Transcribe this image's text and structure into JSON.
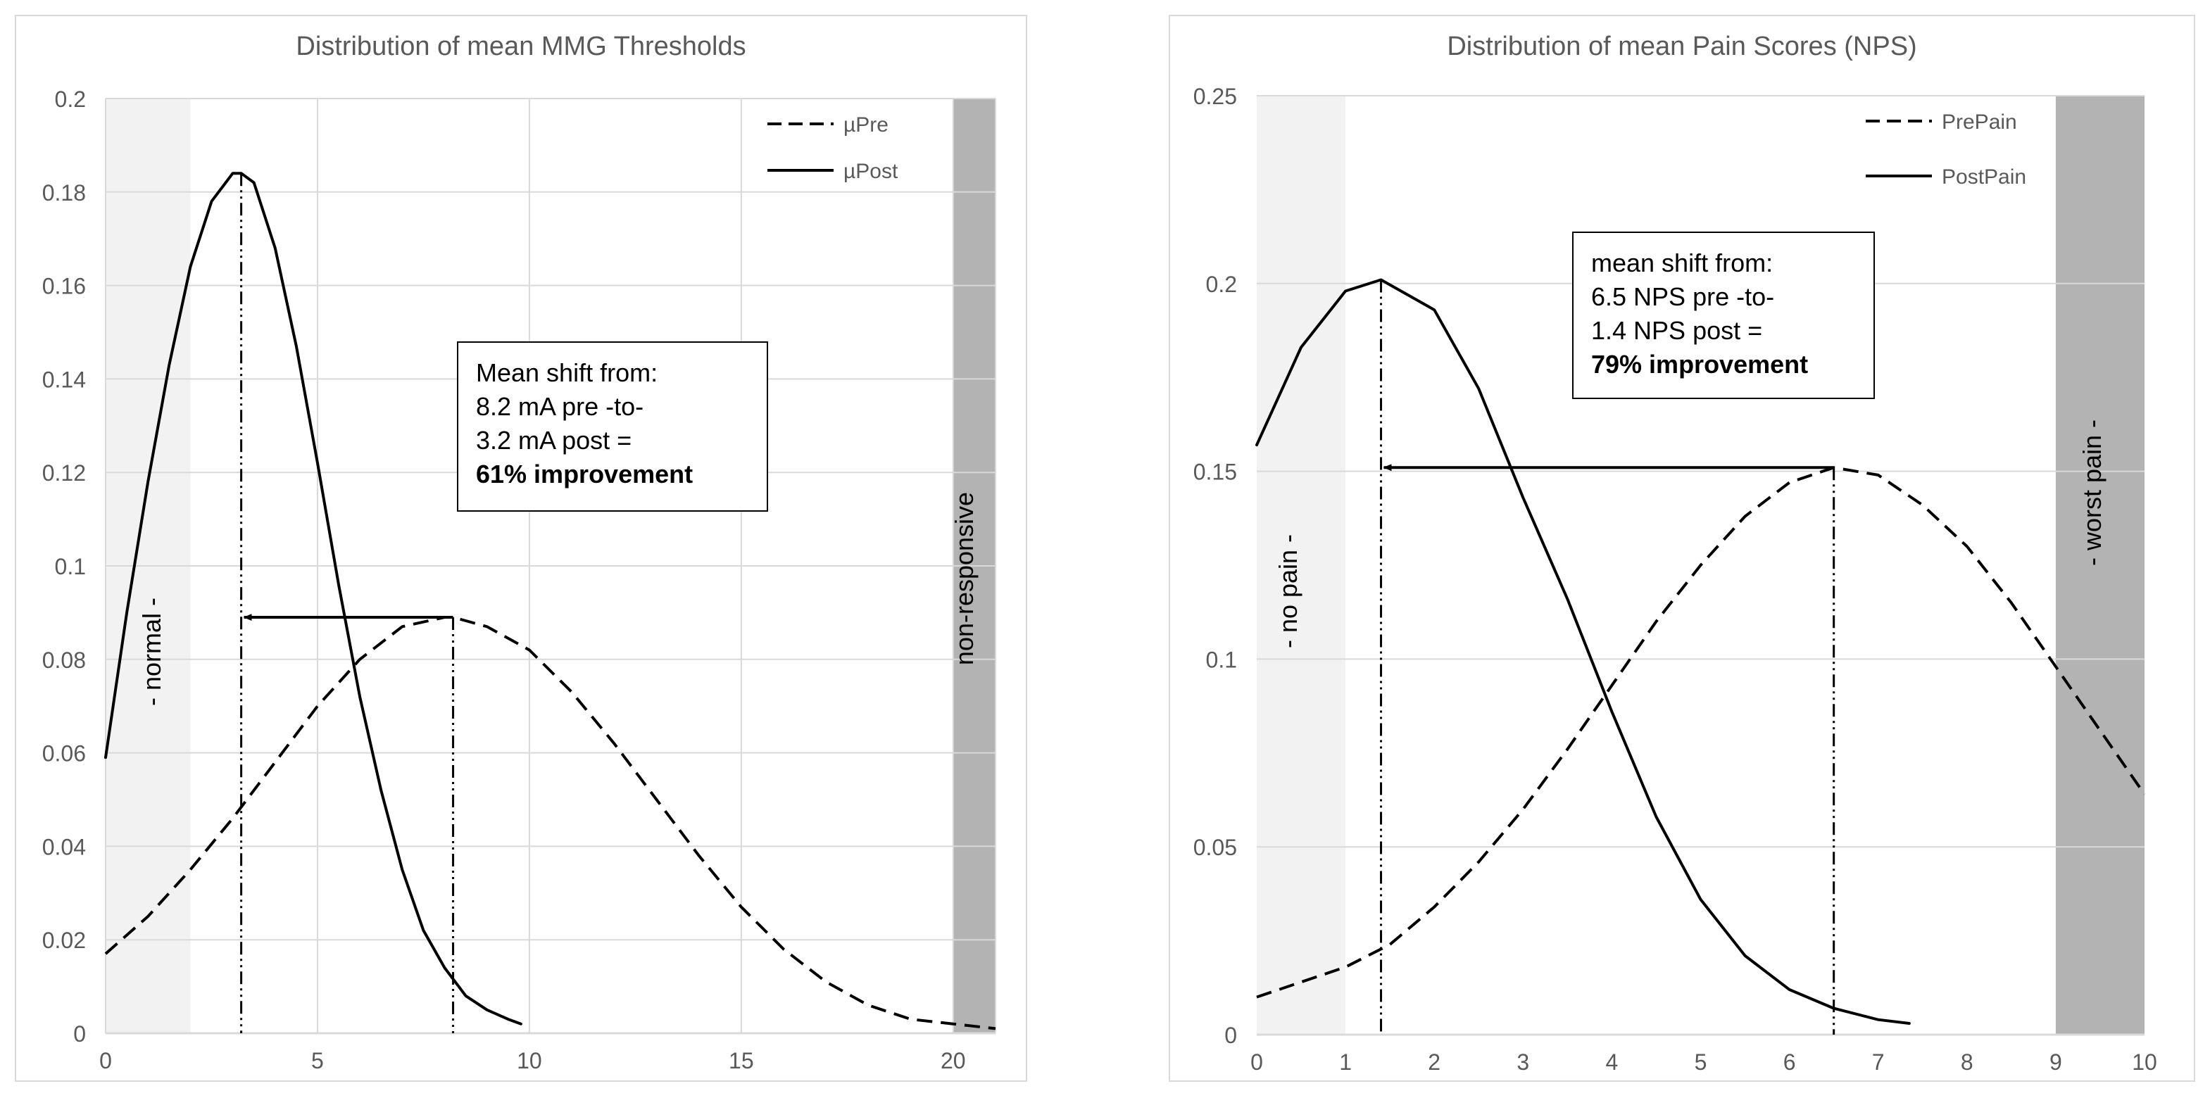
{
  "colors": {
    "text": "#595959",
    "dark": "#000000",
    "grid": "#d9d9d9",
    "normal_band": "#f2f2f2",
    "extreme_band": "#b3b3b3",
    "frame": "#d9d9d9"
  },
  "chart_data": [
    {
      "type": "line",
      "title": "Distribution of mean MMG Thresholds",
      "xlabel": "",
      "ylabel": "",
      "xlim": [
        0,
        21
      ],
      "ylim": [
        0,
        0.2
      ],
      "xticks": [
        0,
        5,
        10,
        15,
        20
      ],
      "yticks": [
        0,
        0.02,
        0.04,
        0.06,
        0.08,
        0.1,
        0.12,
        0.14,
        0.16,
        0.18,
        0.2
      ],
      "grid": "vertical-and-horizontal",
      "series": [
        {
          "name": "µPre",
          "style": "dashed",
          "x": [
            0,
            1,
            2,
            3,
            4,
            5,
            6,
            7,
            8,
            8.2,
            9,
            10,
            11,
            12,
            13,
            14,
            15,
            16,
            17,
            18,
            19,
            20,
            21
          ],
          "y": [
            0.017,
            0.025,
            0.035,
            0.046,
            0.058,
            0.07,
            0.08,
            0.087,
            0.089,
            0.089,
            0.087,
            0.082,
            0.073,
            0.062,
            0.05,
            0.038,
            0.027,
            0.018,
            0.011,
            0.006,
            0.003,
            0.002,
            0.001
          ]
        },
        {
          "name": "µPost",
          "style": "solid",
          "x": [
            0,
            0.5,
            1,
            1.5,
            2,
            2.5,
            3,
            3.2,
            3.5,
            4,
            4.5,
            5,
            5.5,
            6,
            6.5,
            7,
            7.5,
            8,
            8.5,
            9,
            9.5,
            9.8
          ],
          "y": [
            0.059,
            0.09,
            0.118,
            0.143,
            0.164,
            0.178,
            0.184,
            0.184,
            0.182,
            0.168,
            0.147,
            0.122,
            0.096,
            0.072,
            0.052,
            0.035,
            0.022,
            0.014,
            0.008,
            0.005,
            0.003,
            0.002
          ]
        }
      ],
      "means": {
        "pre": 8.2,
        "post": 3.2,
        "at_y": 0.089
      },
      "bands": [
        {
          "from": 0,
          "to": 2,
          "label": "- normal -",
          "shade": "light"
        },
        {
          "from": 20,
          "to": 21,
          "label": "non-responsive",
          "shade": "dark"
        }
      ],
      "annotation": {
        "lines": [
          "Mean shift from:",
          "8.2 mA pre -to-",
          "3.2 mA post ="
        ],
        "bold": "61% improvement"
      }
    },
    {
      "type": "line",
      "title": "Distribution of mean Pain Scores (NPS)",
      "xlabel": "",
      "ylabel": "",
      "xlim": [
        0,
        10
      ],
      "ylim": [
        0,
        0.25
      ],
      "xticks": [
        0,
        1,
        2,
        3,
        4,
        5,
        6,
        7,
        8,
        9,
        10
      ],
      "yticks": [
        0,
        0.05,
        0.1,
        0.15,
        0.2,
        0.25
      ],
      "grid": "horizontal",
      "series": [
        {
          "name": "PrePain",
          "style": "dashed",
          "x": [
            0,
            0.5,
            1,
            1.5,
            2,
            2.5,
            3,
            3.5,
            4,
            4.5,
            5,
            5.5,
            6,
            6.5,
            7,
            7.5,
            8,
            8.5,
            9,
            9.5,
            10
          ],
          "y": [
            0.01,
            0.014,
            0.018,
            0.024,
            0.034,
            0.046,
            0.06,
            0.076,
            0.093,
            0.11,
            0.125,
            0.138,
            0.147,
            0.151,
            0.149,
            0.141,
            0.13,
            0.115,
            0.098,
            0.081,
            0.064
          ]
        },
        {
          "name": "PostPain",
          "style": "solid",
          "x": [
            0,
            0.5,
            1,
            1.4,
            2,
            2.5,
            3,
            3.5,
            4,
            4.5,
            5,
            5.5,
            6,
            6.5,
            7,
            7.35
          ],
          "y": [
            0.157,
            0.183,
            0.198,
            0.201,
            0.193,
            0.172,
            0.143,
            0.116,
            0.086,
            0.058,
            0.036,
            0.021,
            0.012,
            0.007,
            0.004,
            0.003
          ]
        }
      ],
      "means": {
        "pre": 6.5,
        "post": 1.4,
        "at_y": 0.151
      },
      "bands": [
        {
          "from": 0,
          "to": 1,
          "label": "- no pain -",
          "shade": "light"
        },
        {
          "from": 9,
          "to": 10,
          "label": "- worst pain -",
          "shade": "dark"
        }
      ],
      "annotation": {
        "lines": [
          "mean shift from:",
          "6.5 NPS pre -to-",
          "1.4 NPS post ="
        ],
        "bold": "79% improvement"
      }
    }
  ]
}
